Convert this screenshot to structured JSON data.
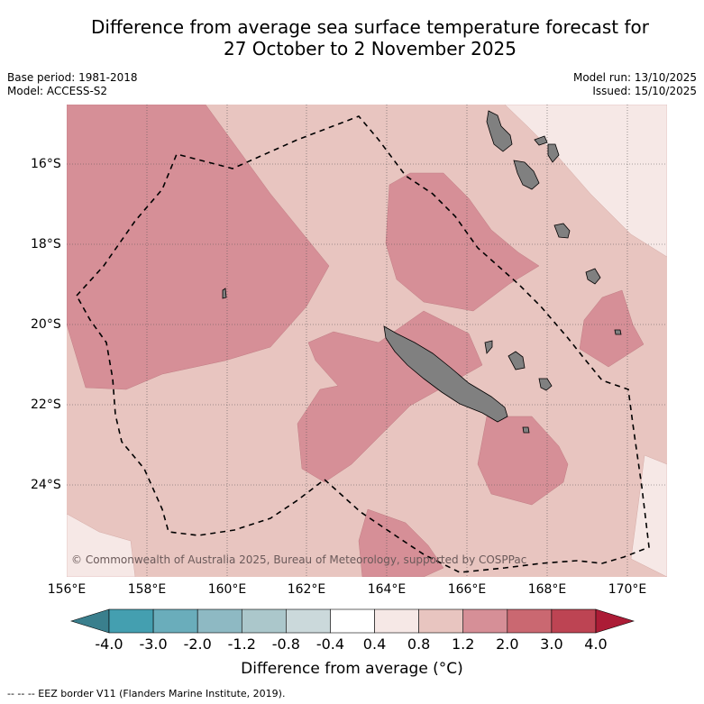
{
  "title_line1": "Difference from average sea surface temperature forecast for",
  "title_line2": "27 October to 2 November 2025",
  "meta": {
    "base_period": "Base period: 1981-2018",
    "model": "Model: ACCESS-S2",
    "model_run": "Model run: 13/10/2025",
    "issued": "Issued: 15/10/2025"
  },
  "map": {
    "lat_labels": [
      "16°S",
      "18°S",
      "20°S",
      "22°S",
      "24°S"
    ],
    "lon_labels": [
      "156°E",
      "158°E",
      "160°E",
      "162°E",
      "164°E",
      "166°E",
      "168°E",
      "170°E"
    ],
    "copyright": "© Commonwealth of Australia 2025, Bureau of Meteorology, supported by COSPPac"
  },
  "colorbar": {
    "tick_labels": [
      "-4.0",
      "-3.0",
      "-2.0",
      "-1.2",
      "-0.8",
      "-0.4",
      "0.4",
      "0.8",
      "1.2",
      "2.0",
      "3.0",
      "4.0"
    ],
    "colors": [
      "#449fb0",
      "#6aadbb",
      "#8eb9c3",
      "#abc7cb",
      "#cbd9db",
      "#ffffff",
      "#f6e8e6",
      "#e8c5c0",
      "#d68f97",
      "#ca6871",
      "#bd4453"
    ],
    "under_color": "#3a7f8d",
    "over_color": "#ac1c36",
    "label": "Difference from average (°C)"
  },
  "footnote": "-- -- -- EEZ border V11 (Flanders Marine Institute, 2019).",
  "colors": {
    "light_anomaly": "#f6e8e6",
    "mid_anomaly": "#e8c5c0",
    "strong_anomaly": "#d68f97",
    "land": "#808080"
  }
}
